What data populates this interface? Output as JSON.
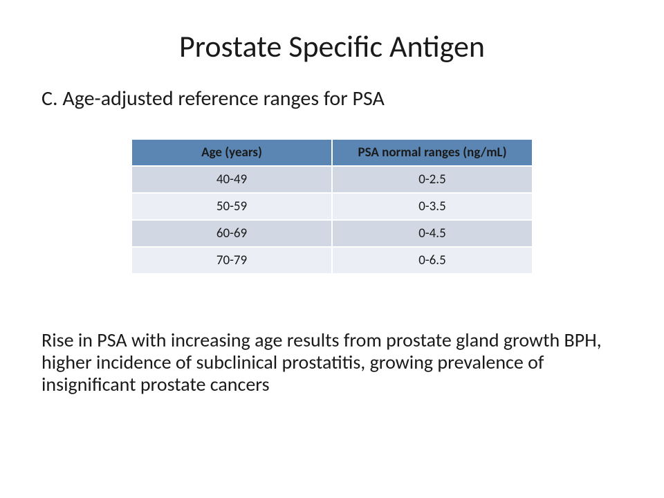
{
  "title": "Prostate Specific Antigen",
  "subheading": "C. Age-adjusted reference ranges for PSA",
  "table": {
    "header_bg": "#5b86b3",
    "row_alt_a_bg": "#d1d8e3",
    "row_alt_b_bg": "#ebeef4",
    "columns": [
      "Age (years)",
      "PSA normal ranges (ng/mL)"
    ],
    "rows": [
      [
        "40-49",
        "0-2.5"
      ],
      [
        "50-59",
        "0-3.5"
      ],
      [
        "60-69",
        "0-4.5"
      ],
      [
        "70-79",
        "0-6.5"
      ]
    ]
  },
  "body_text": "Rise in PSA with increasing age results from prostate gland growth BPH, higher incidence of subclinical prostatitis, growing prevalence of insignificant prostate cancers"
}
